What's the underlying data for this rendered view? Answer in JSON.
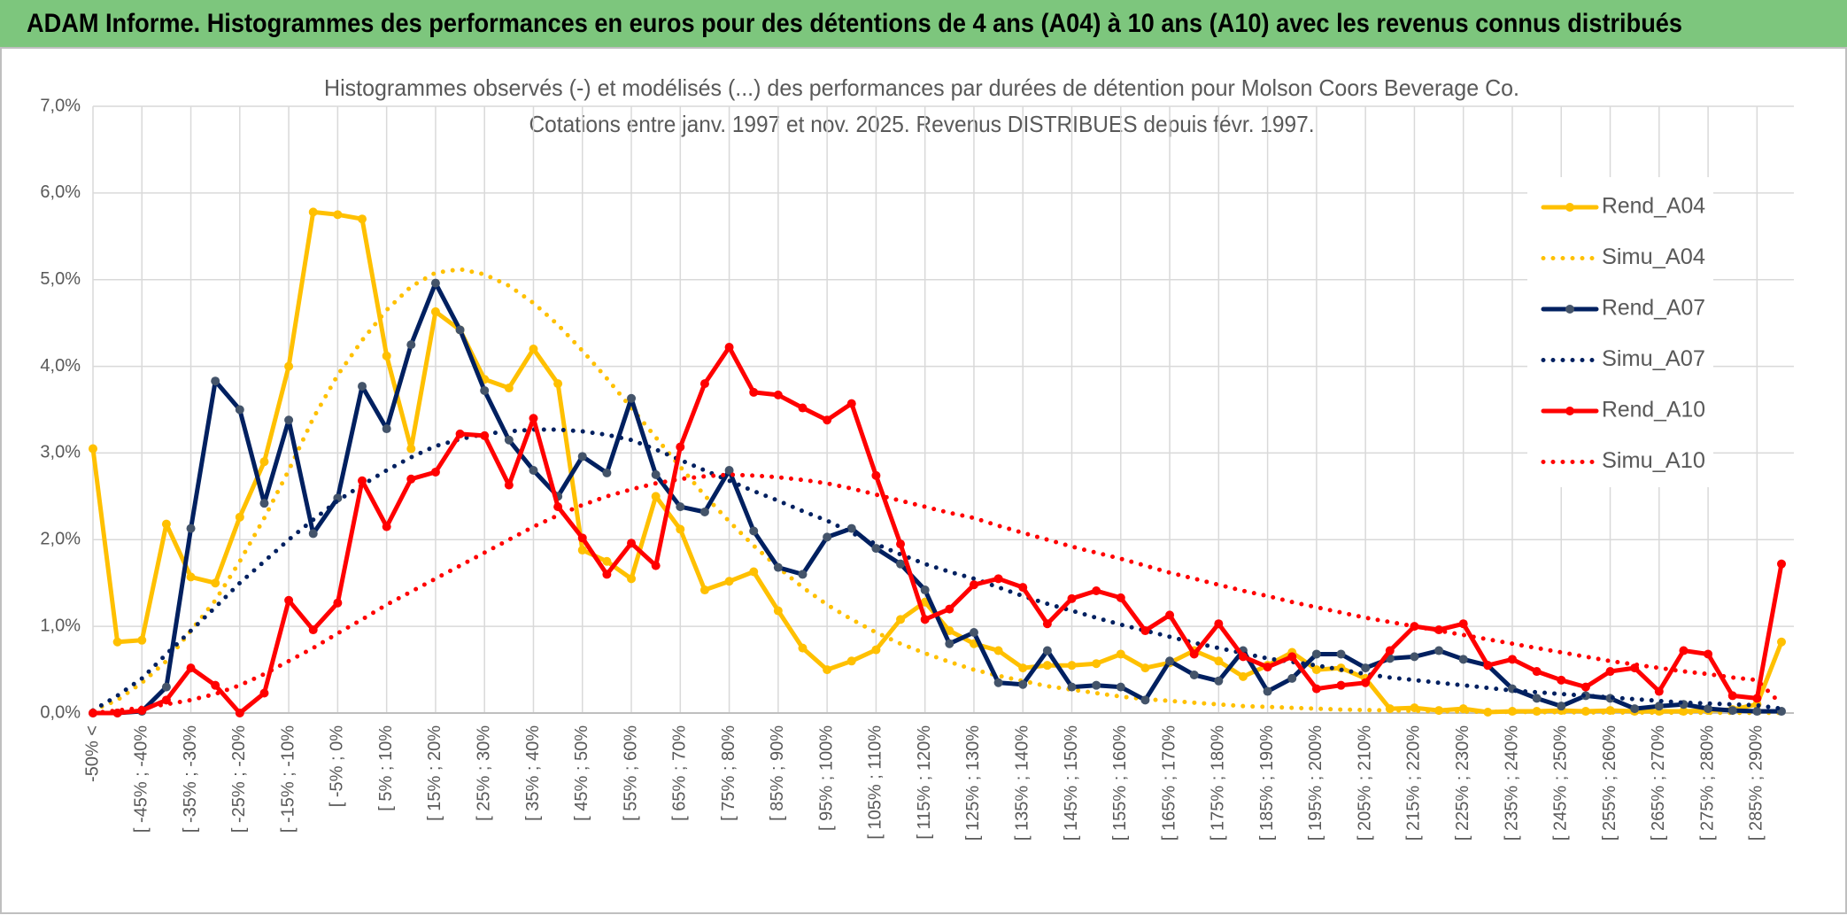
{
  "chart_data": {
    "type": "line",
    "title": "ADAM Informe. Histogrammes des performances en euros pour des détentions de 4 ans (A04) à 10 ans (A10) avec les revenus connus distribués",
    "subtitle": [
      "Histogrammes observés (-) et modélisés (...) des performances par durées de détention pour Molson Coors Beverage Co.",
      "Cotations entre janv. 1997 et nov. 2025. Revenus DISTRIBUES depuis févr. 1997."
    ],
    "categories": [
      "-50% <",
      null,
      "[ -45% ; -40%",
      null,
      "[ -35% ; -30%",
      null,
      "[ -25% ; -20%",
      null,
      "[ -15% ; -10%",
      null,
      "[ -5% ; 0%",
      null,
      "[ 5% ; 10%",
      null,
      "[ 15% ; 20%",
      null,
      "[ 25% ; 30%",
      null,
      "[ 35% ; 40%",
      null,
      "[ 45% ; 50%",
      null,
      "[ 55% ; 60%",
      null,
      "[ 65% ; 70%",
      null,
      "[ 75% ; 80%",
      null,
      "[ 85% ; 90%",
      null,
      "[ 95% ; 100%",
      null,
      "[ 105% ; 110%",
      null,
      "[ 115% ; 120%",
      null,
      "[ 125% ; 130%",
      null,
      "[ 135% ; 140%",
      null,
      "[ 145% ; 150%",
      null,
      "[ 155% ; 160%",
      null,
      "[ 165% ; 170%",
      null,
      "[ 175% ; 180%",
      null,
      "[ 185% ; 190%",
      null,
      "[ 195% ; 200%",
      null,
      "[ 205% ; 210%",
      null,
      "[ 215% ; 220%",
      null,
      "[ 225% ; 230%",
      null,
      "[ 235% ; 240%",
      null,
      "[ 245% ; 250%",
      null,
      "[ 255% ; 260%",
      null,
      "[ 265% ; 270%",
      null,
      "[ 275% ; 280%",
      null,
      "[ 285% ; 290%",
      null
    ],
    "series": [
      {
        "name": "Rend_A04",
        "color": "#FFC000",
        "marker_color": "#FFC000",
        "style": "solid",
        "values": [
          3.05,
          0.82,
          0.84,
          2.18,
          1.57,
          1.5,
          2.26,
          2.9,
          4.0,
          5.78,
          5.75,
          5.7,
          4.12,
          3.05,
          4.63,
          4.42,
          3.85,
          3.75,
          4.2,
          3.8,
          1.88,
          1.75,
          1.55,
          2.5,
          2.12,
          1.42,
          1.52,
          1.63,
          1.18,
          0.75,
          0.5,
          0.6,
          0.73,
          1.08,
          1.28,
          0.95,
          0.8,
          0.72,
          0.52,
          0.55,
          0.55,
          0.57,
          0.68,
          0.52,
          0.58,
          0.72,
          0.6,
          0.42,
          0.55,
          0.7,
          0.5,
          0.52,
          0.4,
          0.05,
          0.06,
          0.03,
          0.05,
          0.01,
          0.02,
          0.02,
          0.03,
          0.02,
          0.03,
          0.02,
          0.02,
          0.02,
          0.03,
          0.04,
          0.1,
          0.82
        ]
      },
      {
        "name": "Simu_A04",
        "color": "#FFC000",
        "style": "dotted",
        "values": [
          0.03,
          0.15,
          0.35,
          0.6,
          0.95,
          1.3,
          1.75,
          2.25,
          2.8,
          3.4,
          3.9,
          4.3,
          4.65,
          4.92,
          5.08,
          5.12,
          5.06,
          4.93,
          4.73,
          4.48,
          4.18,
          3.86,
          3.52,
          3.18,
          2.84,
          2.51,
          2.21,
          1.93,
          1.68,
          1.45,
          1.25,
          1.08,
          0.93,
          0.8,
          0.69,
          0.59,
          0.5,
          0.43,
          0.37,
          0.31,
          0.27,
          0.23,
          0.19,
          0.16,
          0.14,
          0.12,
          0.1,
          0.08,
          0.07,
          0.06,
          0.05,
          0.04,
          0.035,
          0.03,
          0.025,
          0.02,
          0.017,
          0.014,
          0.012,
          0.01,
          0.008,
          0.007,
          0.006,
          0.005,
          0.004,
          0.003,
          0.003,
          0.002,
          0.002,
          0.002
        ]
      },
      {
        "name": "Rend_A07",
        "color": "#002060",
        "marker_color": "#44546A",
        "style": "solid",
        "values": [
          0.0,
          0.0,
          0.02,
          0.3,
          2.13,
          3.83,
          3.5,
          2.42,
          3.38,
          2.07,
          2.48,
          3.77,
          3.28,
          4.25,
          4.96,
          4.42,
          3.72,
          3.15,
          2.8,
          2.5,
          2.96,
          2.77,
          3.63,
          2.75,
          2.38,
          2.32,
          2.8,
          2.1,
          1.68,
          1.6,
          2.03,
          2.13,
          1.9,
          1.72,
          1.42,
          0.8,
          0.93,
          0.35,
          0.33,
          0.72,
          0.3,
          0.32,
          0.3,
          0.15,
          0.6,
          0.44,
          0.37,
          0.72,
          0.25,
          0.4,
          0.68,
          0.68,
          0.52,
          0.63,
          0.65,
          0.72,
          0.62,
          0.55,
          0.28,
          0.17,
          0.08,
          0.2,
          0.17,
          0.05,
          0.08,
          0.1,
          0.05,
          0.03,
          0.02,
          0.02
        ]
      },
      {
        "name": "Simu_A07",
        "color": "#002060",
        "style": "dotted",
        "values": [
          0.03,
          0.2,
          0.4,
          0.68,
          0.95,
          1.22,
          1.5,
          1.75,
          2.0,
          2.23,
          2.45,
          2.63,
          2.8,
          2.95,
          3.08,
          3.16,
          3.22,
          3.25,
          3.27,
          3.27,
          3.25,
          3.21,
          3.15,
          3.04,
          2.92,
          2.8,
          2.68,
          2.56,
          2.45,
          2.33,
          2.22,
          2.08,
          1.95,
          1.83,
          1.72,
          1.63,
          1.55,
          1.45,
          1.35,
          1.26,
          1.18,
          1.1,
          1.02,
          0.95,
          0.88,
          0.81,
          0.75,
          0.69,
          0.63,
          0.59,
          0.55,
          0.5,
          0.45,
          0.41,
          0.38,
          0.35,
          0.32,
          0.29,
          0.26,
          0.24,
          0.22,
          0.2,
          0.18,
          0.16,
          0.14,
          0.12,
          0.11,
          0.1,
          0.09,
          0.05
        ]
      },
      {
        "name": "Rend_A10",
        "color": "#FF0000",
        "marker_color": "#FF0000",
        "style": "solid",
        "values": [
          0.0,
          0.0,
          0.03,
          0.15,
          0.52,
          0.32,
          0.0,
          0.23,
          1.3,
          0.96,
          1.27,
          2.68,
          2.15,
          2.7,
          2.78,
          3.22,
          3.2,
          2.63,
          3.4,
          2.38,
          2.02,
          1.6,
          1.96,
          1.7,
          3.07,
          3.8,
          4.22,
          3.7,
          3.67,
          3.52,
          3.38,
          3.57,
          2.74,
          1.95,
          1.08,
          1.2,
          1.48,
          1.55,
          1.45,
          1.03,
          1.32,
          1.41,
          1.33,
          0.95,
          1.13,
          0.68,
          1.03,
          0.65,
          0.53,
          0.65,
          0.28,
          0.32,
          0.35,
          0.72,
          1.0,
          0.96,
          1.03,
          0.55,
          0.62,
          0.48,
          0.38,
          0.3,
          0.48,
          0.52,
          0.25,
          0.72,
          0.68,
          0.2,
          0.17,
          1.72
        ]
      },
      {
        "name": "Simu_A10",
        "color": "#FF0000",
        "style": "dotted",
        "values": [
          0.0,
          0.03,
          0.06,
          0.1,
          0.15,
          0.22,
          0.32,
          0.45,
          0.6,
          0.75,
          0.92,
          1.08,
          1.25,
          1.4,
          1.55,
          1.7,
          1.85,
          2.0,
          2.15,
          2.28,
          2.4,
          2.5,
          2.58,
          2.65,
          2.7,
          2.73,
          2.75,
          2.74,
          2.72,
          2.69,
          2.65,
          2.59,
          2.52,
          2.45,
          2.38,
          2.31,
          2.25,
          2.16,
          2.08,
          2.0,
          1.92,
          1.85,
          1.78,
          1.7,
          1.62,
          1.55,
          1.48,
          1.41,
          1.35,
          1.28,
          1.22,
          1.16,
          1.1,
          1.05,
          1.0,
          0.95,
          0.9,
          0.85,
          0.8,
          0.75,
          0.7,
          0.65,
          0.6,
          0.56,
          0.52,
          0.48,
          0.45,
          0.41,
          0.38,
          0.1
        ]
      }
    ],
    "ylim": [
      0,
      7
    ],
    "yticks": [
      {
        "value": 0,
        "label": "0,0%"
      },
      {
        "value": 1,
        "label": "1,0%"
      },
      {
        "value": 2,
        "label": "2,0%"
      },
      {
        "value": 3,
        "label": "3,0%"
      },
      {
        "value": 4,
        "label": "4,0%"
      },
      {
        "value": 5,
        "label": "5,0%"
      },
      {
        "value": 6,
        "label": "6,0%"
      },
      {
        "value": 7,
        "label": "7,0%"
      }
    ],
    "grid": true,
    "legend": "right"
  }
}
